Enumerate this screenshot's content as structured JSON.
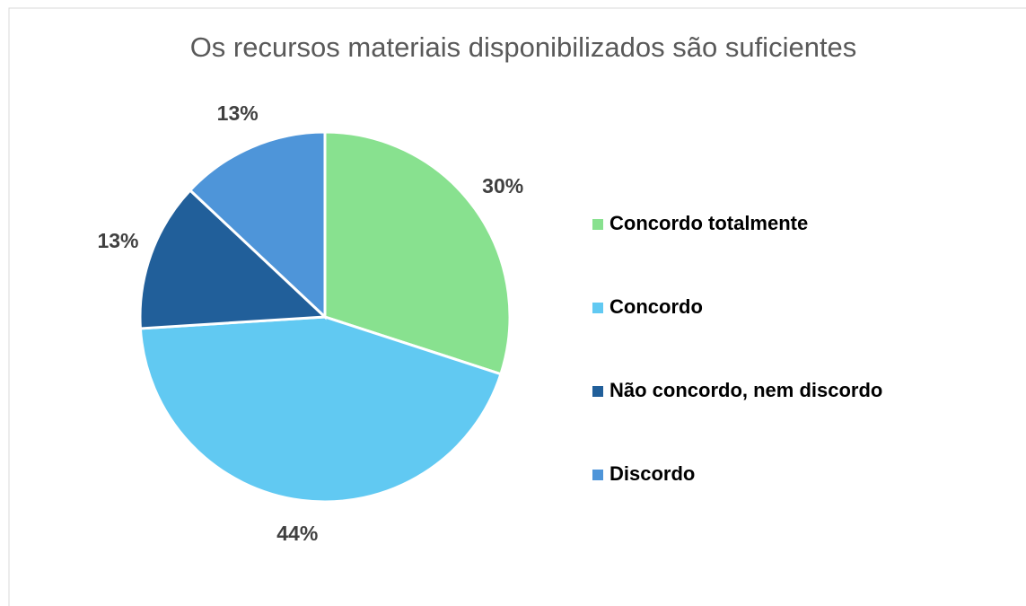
{
  "chart_data": {
    "type": "pie",
    "title": "Os recursos materiais disponibilizados são suficientes",
    "categories": [
      "Concordo totalmente",
      "Concordo",
      "Não concordo, nem discordo",
      "Discordo"
    ],
    "values": [
      30,
      44,
      13,
      13
    ],
    "value_labels": [
      "30%",
      "44%",
      "13%",
      "13%"
    ],
    "colors": [
      "#88e18f",
      "#61c9f2",
      "#215f9a",
      "#4e95d9"
    ],
    "legend": "right"
  }
}
